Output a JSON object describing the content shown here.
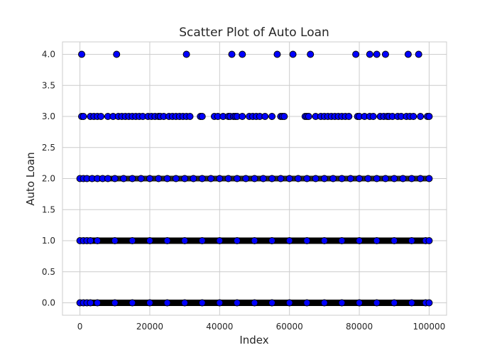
{
  "chart_data": {
    "type": "scatter",
    "title": "Scatter Plot of Auto Loan",
    "xlabel": "Index",
    "ylabel": "Auto Loan",
    "xlim": [
      -5000,
      105000
    ],
    "ylim": [
      -0.2,
      4.2
    ],
    "xticks": [
      0,
      20000,
      40000,
      60000,
      80000,
      100000
    ],
    "xtick_labels": [
      "0",
      "20000",
      "40000",
      "60000",
      "80000",
      "100000"
    ],
    "yticks": [
      0.0,
      0.5,
      1.0,
      1.5,
      2.0,
      2.5,
      3.0,
      3.5,
      4.0
    ],
    "ytick_labels": [
      "0.0",
      "0.5",
      "1.0",
      "1.5",
      "2.0",
      "2.5",
      "3.0",
      "3.5",
      "4.0"
    ],
    "grid": true,
    "marker_face_color": "#0000ff",
    "marker_edge_color": "#000000",
    "series": [
      {
        "y": 4.0,
        "x": [
          500,
          10500,
          30500,
          43500,
          46500,
          56500,
          61000,
          66000,
          79000,
          83000,
          85000,
          87500,
          94000,
          97000
        ]
      },
      {
        "y": 3.0,
        "x": [
          500,
          1000,
          3000,
          4000,
          5000,
          6000,
          8000,
          9500,
          11000,
          12000,
          13000,
          14000,
          15000,
          16000,
          17000,
          18000,
          19500,
          20500,
          21500,
          22500,
          23000,
          24000,
          25500,
          26500,
          27500,
          28500,
          29500,
          30500,
          31500,
          34500,
          35000,
          38500,
          39500,
          41000,
          42500,
          43000,
          44000,
          44500,
          45000,
          46500,
          48500,
          49500,
          50500,
          51500,
          53000,
          55000,
          57500,
          58000,
          58500,
          64500,
          65000,
          65500,
          67500,
          69000,
          70000,
          71000,
          72000,
          73000,
          74000,
          75000,
          76000,
          77000,
          79500,
          80000,
          81500,
          83000,
          84000,
          86000,
          87000,
          88000,
          88500,
          89500,
          91000,
          92000,
          93500,
          94500,
          95500,
          97500,
          99500,
          100000
        ]
      },
      {
        "y": 2.0,
        "x": [
          0,
          1000,
          2000,
          3500,
          5000,
          6500,
          8000,
          10000,
          12500,
          15000,
          17500,
          20000,
          22500,
          25000,
          27500,
          30000,
          32500,
          35000,
          37500,
          40000,
          42500,
          45000,
          47500,
          50000,
          52500,
          55000,
          57500,
          60000,
          62500,
          65000,
          67500,
          70000,
          72500,
          75000,
          77500,
          80000,
          82500,
          85000,
          87500,
          90000,
          92500,
          95000,
          97500,
          100000
        ]
      },
      {
        "y": 1.0,
        "x": [
          0,
          1000,
          2000,
          3000,
          5000,
          10000,
          15000,
          20000,
          25000,
          30000,
          35000,
          40000,
          45000,
          50000,
          55000,
          60000,
          65000,
          70000,
          75000,
          80000,
          85000,
          90000,
          95000,
          99000,
          100000
        ]
      },
      {
        "y": 0.0,
        "x": [
          0,
          1000,
          2000,
          3000,
          5000,
          10000,
          15000,
          20000,
          25000,
          30000,
          35000,
          40000,
          45000,
          50000,
          55000,
          60000,
          65000,
          70000,
          75000,
          80000,
          85000,
          90000,
          95000,
          99000,
          100000
        ]
      }
    ]
  }
}
